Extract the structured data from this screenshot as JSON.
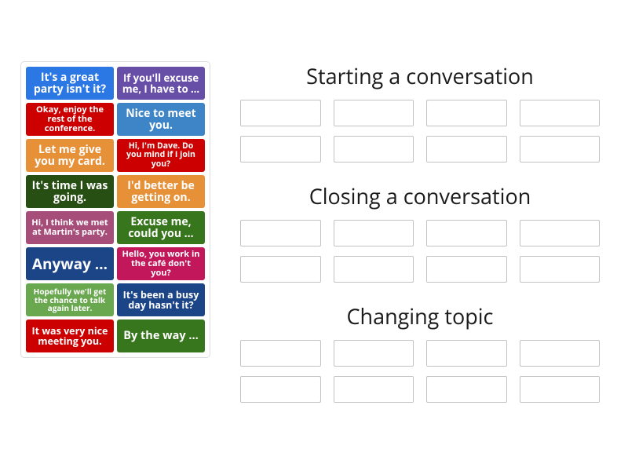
{
  "cards": [
    {
      "text": "It's a great party isn't it?",
      "bg": "#2b78e4",
      "fs": 14
    },
    {
      "text": "If you'll excuse me, I have to …",
      "bg": "#674ea7",
      "fs": 13
    },
    {
      "text": "Okay, enjoy the rest of the conference.",
      "bg": "#cc0000",
      "fs": 11
    },
    {
      "text": "Nice to meet you.",
      "bg": "#3d85c6",
      "fs": 14
    },
    {
      "text": "Let me give you my card.",
      "bg": "#e69138",
      "fs": 14
    },
    {
      "text": "Hi, I'm Dave. Do you mind if I join you?",
      "bg": "#cc0000",
      "fs": 10.5
    },
    {
      "text": "It's time I was going.",
      "bg": "#274e13",
      "fs": 14
    },
    {
      "text": "I'd better be getting on.",
      "bg": "#e69138",
      "fs": 14
    },
    {
      "text": "Hi, I think we met at Martin's party.",
      "bg": "#a64d79",
      "fs": 11
    },
    {
      "text": "Excuse me, could you …",
      "bg": "#38761d",
      "fs": 14
    },
    {
      "text": "Anyway …",
      "bg": "#1c4587",
      "fs": 19
    },
    {
      "text": "Hello, you work in the café don't you?",
      "bg": "#c2185b",
      "fs": 11
    },
    {
      "text": "Hopefully we'll get the chance to talk again later.",
      "bg": "#6aa84f",
      "fs": 10
    },
    {
      "text": "It's been a busy day hasn't it?",
      "bg": "#1c4587",
      "fs": 12.5
    },
    {
      "text": "It was very nice meeting you.",
      "bg": "#cc0000",
      "fs": 12.5
    },
    {
      "text": "By the way …",
      "bg": "#38761d",
      "fs": 14.5
    }
  ],
  "categories": [
    {
      "title": "Starting a conversation",
      "slots": 8
    },
    {
      "title": "Closing a conversation",
      "slots": 8
    },
    {
      "title": "Changing topic",
      "slots": 8
    }
  ]
}
